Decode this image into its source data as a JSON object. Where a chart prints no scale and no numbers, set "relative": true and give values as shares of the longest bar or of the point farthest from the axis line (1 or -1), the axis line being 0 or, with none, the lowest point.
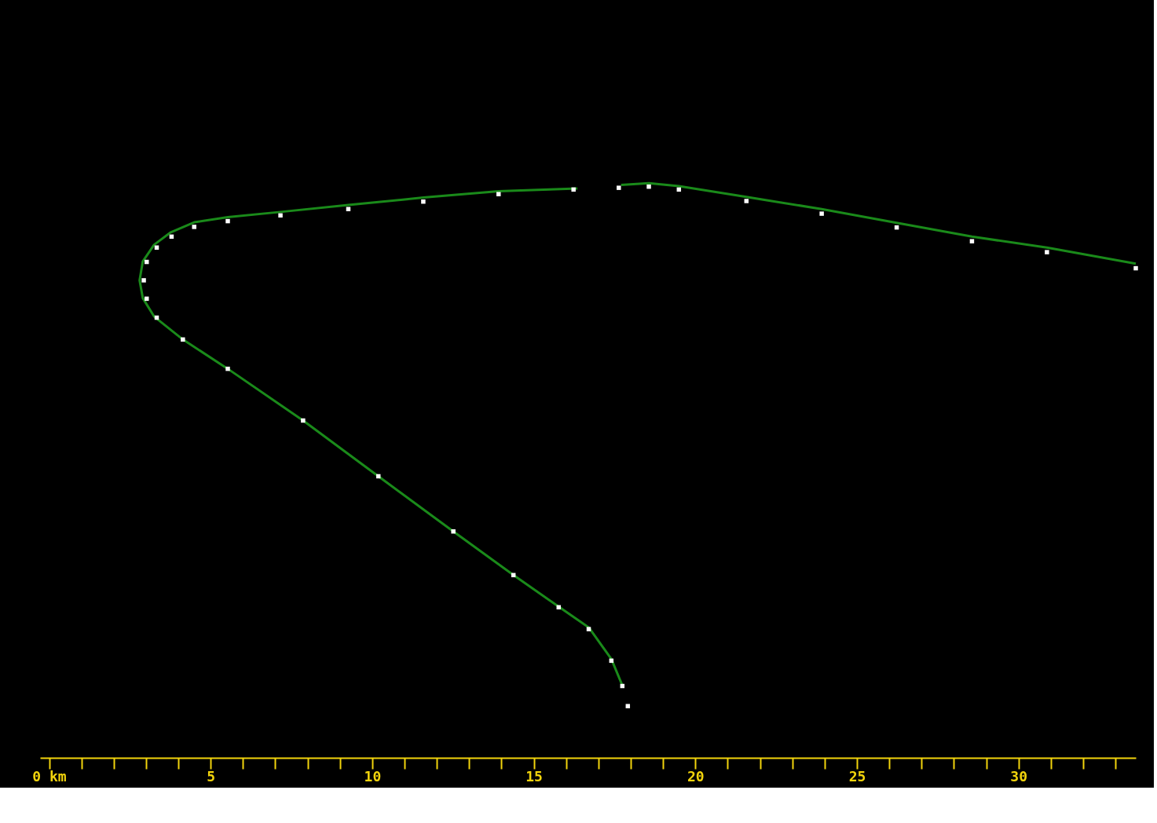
{
  "chart_data": {
    "type": "line",
    "relative": true,
    "grid": false,
    "xlim": [
      -0.28,
      33.63
    ],
    "xticks": [
      {
        "value": 0,
        "label": "0 km"
      },
      {
        "value": 1,
        "label": null
      },
      {
        "value": 2,
        "label": null
      },
      {
        "value": 3,
        "label": null
      },
      {
        "value": 4,
        "label": null
      },
      5,
      {
        "value": 6,
        "label": null
      },
      {
        "value": 7,
        "label": null
      },
      {
        "value": 8,
        "label": null
      },
      {
        "value": 9,
        "label": null
      },
      10,
      {
        "value": 11,
        "label": null
      },
      {
        "value": 12,
        "label": null
      },
      {
        "value": 13,
        "label": null
      },
      {
        "value": 14,
        "label": null
      },
      15,
      {
        "value": 16,
        "label": null
      },
      {
        "value": 17,
        "label": null
      },
      {
        "value": 18,
        "label": null
      },
      {
        "value": 19,
        "label": null
      },
      20,
      {
        "value": 21,
        "label": null
      },
      {
        "value": 22,
        "label": null
      },
      {
        "value": 23,
        "label": null
      },
      {
        "value": 24,
        "label": null
      },
      25,
      {
        "value": 26,
        "label": null
      },
      {
        "value": 27,
        "label": null
      },
      {
        "value": 28,
        "label": null
      },
      {
        "value": 29,
        "label": null
      },
      30,
      {
        "value": 31,
        "label": null
      },
      {
        "value": 32,
        "label": null
      },
      {
        "value": 33,
        "label": null
      }
    ],
    "series": [
      {
        "color": "#1a8a1a",
        "line_style": "solid",
        "x": [
          17.74,
          17.4,
          16.7,
          15.77,
          14.37,
          12.51,
          10.19,
          7.86,
          5.53,
          4.14,
          3.25,
          2.9,
          2.8,
          2.9,
          3.25,
          3.75,
          4.49,
          5.53,
          7.16,
          9.26,
          11.58,
          13.91,
          16.35,
          17.0,
          17.7,
          18.56,
          19.49,
          21.58,
          23.91,
          26.23,
          28.56,
          30.88,
          33.63
        ],
        "values": [
          0.126,
          0.172,
          0.227,
          0.263,
          0.318,
          0.394,
          0.49,
          0.587,
          0.677,
          0.728,
          0.768,
          0.8,
          0.831,
          0.864,
          0.893,
          0.914,
          0.932,
          0.941,
          0.95,
          0.962,
          0.975,
          0.986,
          0.991,
          null,
          0.997,
          1.0,
          0.995,
          0.976,
          0.955,
          0.931,
          0.907,
          0.888,
          0.86
        ]
      },
      {
        "type": "scatter",
        "color": "#ffffff",
        "marker": "square",
        "x": [
          17.91,
          17.74,
          17.4,
          16.7,
          15.77,
          14.37,
          12.51,
          10.19,
          7.86,
          5.53,
          4.14,
          3.33,
          3.02,
          2.93,
          3.02,
          3.33,
          3.79,
          4.49,
          5.53,
          7.16,
          9.26,
          11.58,
          13.91,
          16.23,
          17.63,
          18.56,
          19.49,
          21.58,
          23.91,
          26.23,
          28.56,
          30.88,
          33.63
        ],
        "values": [
          0.09,
          0.125,
          0.169,
          0.224,
          0.262,
          0.318,
          0.394,
          0.49,
          0.587,
          0.677,
          0.728,
          0.766,
          0.799,
          0.831,
          0.863,
          0.888,
          0.907,
          0.924,
          0.934,
          0.944,
          0.955,
          0.968,
          0.981,
          0.989,
          0.992,
          0.994,
          0.989,
          0.969,
          0.947,
          0.923,
          0.899,
          0.88,
          0.852
        ]
      }
    ]
  }
}
